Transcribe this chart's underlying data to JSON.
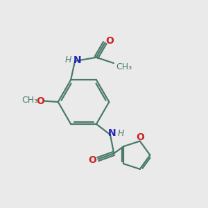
{
  "background_color": "#eaeaea",
  "bond_color": "#4a7a6a",
  "N_color": "#2222bb",
  "O_color": "#cc2222",
  "line_width": 1.6,
  "figsize": [
    3.0,
    3.0
  ],
  "dpi": 100,
  "xlim": [
    0,
    10
  ],
  "ylim": [
    0,
    10
  ]
}
